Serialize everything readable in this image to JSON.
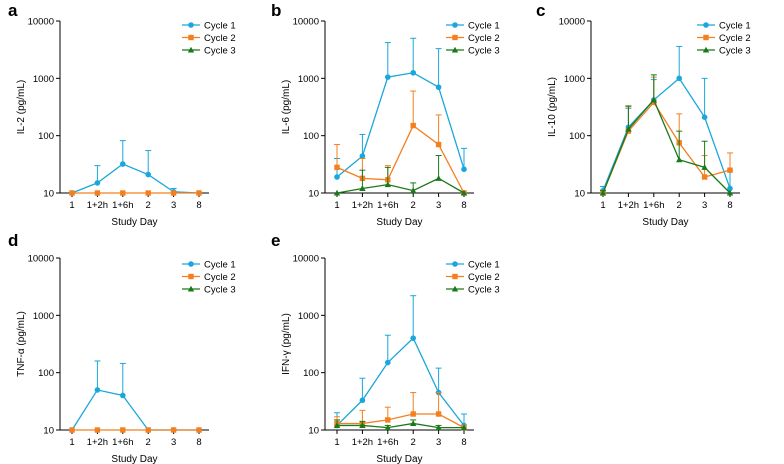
{
  "colors": {
    "Cycle 1": "#1aa7dc",
    "Cycle 2": "#f47f1f",
    "Cycle 3": "#1a7a1a"
  },
  "chart_data": [
    {
      "panel": "a",
      "type": "line",
      "ylabel": "IL-2 (pg/mL)",
      "xlabel": "Study Day",
      "y_scale": "log",
      "ylim": [
        10,
        10000
      ],
      "yticks": [
        "10",
        "100",
        "1000",
        "10000"
      ],
      "categories": [
        "1",
        "1+2h",
        "1+6h",
        "2",
        "3",
        "8"
      ],
      "legend_position": "top-right",
      "series": [
        {
          "name": "Cycle 1",
          "marker": "circle",
          "values": [
            10,
            15,
            32,
            21,
            10.5,
            10
          ],
          "err_upper": [
            10,
            30,
            82,
            55,
            12,
            10
          ]
        },
        {
          "name": "Cycle 2",
          "marker": "square",
          "values": [
            10,
            10,
            10,
            10,
            10,
            10
          ],
          "err_upper": [
            10,
            10,
            10,
            10,
            10,
            10
          ]
        },
        {
          "name": "Cycle 3",
          "marker": "triangle",
          "values": [
            null,
            null,
            null,
            null,
            null,
            null
          ],
          "err_upper": [
            null,
            null,
            null,
            null,
            null,
            null
          ]
        }
      ]
    },
    {
      "panel": "b",
      "type": "line",
      "ylabel": "IL-6 (pg/mL)",
      "xlabel": "Study Day",
      "y_scale": "log",
      "ylim": [
        10,
        10000
      ],
      "yticks": [
        "10",
        "100",
        "1000",
        "10000"
      ],
      "categories": [
        "1",
        "1+2h",
        "1+6h",
        "2",
        "3",
        "8"
      ],
      "legend_position": "top-right",
      "series": [
        {
          "name": "Cycle 1",
          "marker": "circle",
          "values": [
            19,
            44,
            1050,
            1250,
            700,
            26
          ],
          "err_upper": [
            40,
            105,
            4200,
            5000,
            3300,
            60
          ]
        },
        {
          "name": "Cycle 2",
          "marker": "square",
          "values": [
            28,
            18,
            17,
            150,
            70,
            10
          ],
          "err_upper": [
            70,
            40,
            30,
            600,
            230,
            10
          ]
        },
        {
          "name": "Cycle 3",
          "marker": "triangle",
          "values": [
            10,
            12,
            14,
            11,
            18,
            10
          ],
          "err_upper": [
            10,
            25,
            28,
            15,
            45,
            10
          ]
        }
      ]
    },
    {
      "panel": "c",
      "type": "line",
      "ylabel": "IL-10 (pg/mL)",
      "xlabel": "Study Day",
      "y_scale": "log",
      "ylim": [
        10,
        10000
      ],
      "yticks": [
        "10",
        "100",
        "1000",
        "10000"
      ],
      "categories": [
        "1",
        "1+2h",
        "1+6h",
        "2",
        "3",
        "8"
      ],
      "legend_position": "top-right",
      "series": [
        {
          "name": "Cycle 1",
          "marker": "circle",
          "values": [
            11,
            140,
            420,
            1000,
            210,
            12
          ],
          "err_upper": [
            13,
            300,
            950,
            3600,
            1000,
            25
          ]
        },
        {
          "name": "Cycle 2",
          "marker": "square",
          "values": [
            10,
            120,
            380,
            75,
            19,
            25
          ],
          "err_upper": [
            11,
            320,
            1050,
            240,
            45,
            50
          ]
        },
        {
          "name": "Cycle 3",
          "marker": "triangle",
          "values": [
            10,
            130,
            420,
            38,
            28,
            10
          ],
          "err_upper": [
            11,
            330,
            1150,
            120,
            80,
            10
          ]
        }
      ]
    },
    {
      "panel": "d",
      "type": "line",
      "ylabel": "TNF-α (pg/mL)",
      "xlabel": "Study Day",
      "y_scale": "log",
      "ylim": [
        10,
        10000
      ],
      "yticks": [
        "10",
        "100",
        "1000",
        "10000"
      ],
      "categories": [
        "1",
        "1+2h",
        "1+6h",
        "2",
        "3",
        "8"
      ],
      "legend_position": "top-right",
      "series": [
        {
          "name": "Cycle 1",
          "marker": "circle",
          "values": [
            10,
            50,
            40,
            10,
            10,
            10
          ],
          "err_upper": [
            10,
            160,
            145,
            10,
            10,
            10
          ]
        },
        {
          "name": "Cycle 2",
          "marker": "square",
          "values": [
            10,
            10,
            10,
            10,
            10,
            10
          ],
          "err_upper": [
            10,
            10,
            10,
            10,
            10,
            10
          ]
        },
        {
          "name": "Cycle 3",
          "marker": "triangle",
          "values": [
            null,
            null,
            null,
            null,
            null,
            null
          ],
          "err_upper": [
            null,
            null,
            null,
            null,
            null,
            null
          ]
        }
      ]
    },
    {
      "panel": "e",
      "type": "line",
      "ylabel": "IFN-γ (pg/mL)",
      "xlabel": "Study Day",
      "y_scale": "log",
      "ylim": [
        10,
        10000
      ],
      "yticks": [
        "10",
        "100",
        "1000",
        "10000"
      ],
      "categories": [
        "1",
        "1+2h",
        "1+6h",
        "2",
        "3",
        "8"
      ],
      "legend_position": "top-right",
      "series": [
        {
          "name": "Cycle 1",
          "marker": "circle",
          "values": [
            12,
            33,
            150,
            400,
            45,
            12
          ],
          "err_upper": [
            20,
            80,
            450,
            2200,
            120,
            19
          ]
        },
        {
          "name": "Cycle 2",
          "marker": "square",
          "values": [
            13,
            13,
            15,
            19,
            19,
            11
          ],
          "err_upper": [
            17,
            22,
            25,
            45,
            45,
            11
          ]
        },
        {
          "name": "Cycle 3",
          "marker": "triangle",
          "values": [
            12,
            12,
            11,
            13,
            11,
            11
          ],
          "err_upper": [
            15,
            14,
            12,
            15,
            12,
            11
          ]
        }
      ]
    }
  ]
}
